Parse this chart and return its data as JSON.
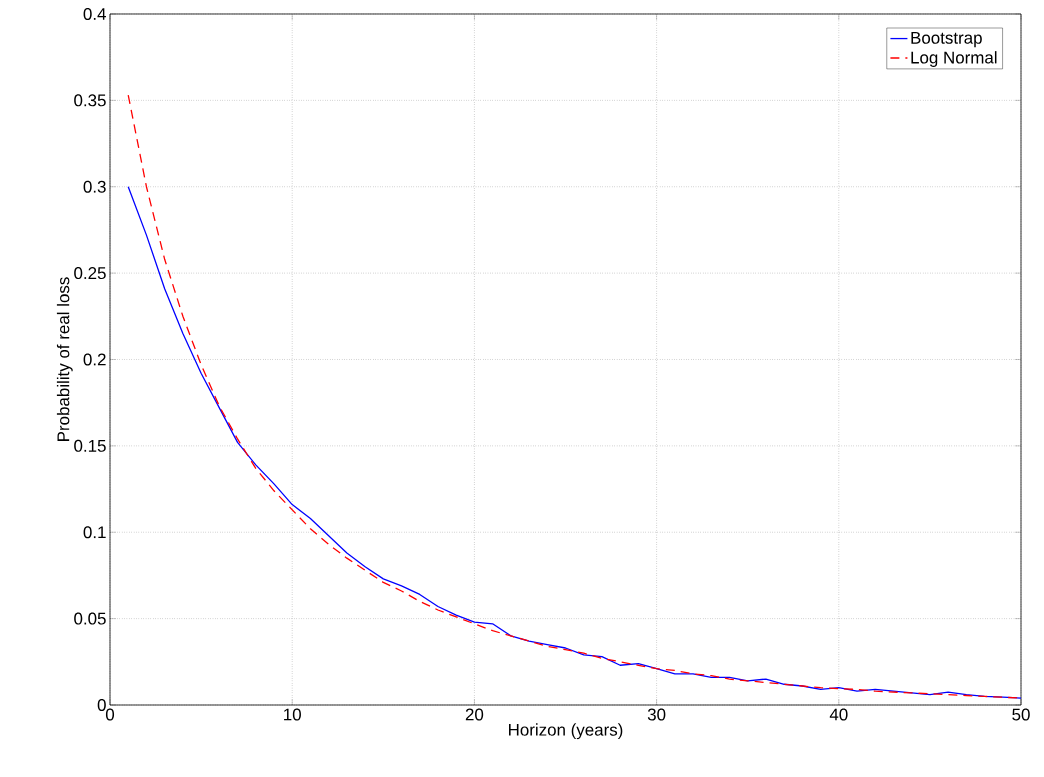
{
  "chart_data": {
    "type": "line",
    "xlabel": "Horizon (years)",
    "ylabel": "Probability of real loss",
    "x": [
      1,
      2,
      3,
      4,
      5,
      6,
      7,
      8,
      9,
      10,
      11,
      12,
      13,
      14,
      15,
      16,
      17,
      18,
      19,
      20,
      21,
      22,
      23,
      24,
      25,
      26,
      27,
      28,
      29,
      30,
      31,
      32,
      33,
      34,
      35,
      36,
      37,
      38,
      39,
      40,
      41,
      42,
      43,
      44,
      45,
      46,
      47,
      48,
      49,
      50
    ],
    "series": [
      {
        "name": "Bootstrap",
        "color": "#0000ff",
        "line_style": "solid",
        "values": [
          0.3,
          0.272,
          0.241,
          0.215,
          0.192,
          0.172,
          0.152,
          0.139,
          0.128,
          0.116,
          0.108,
          0.098,
          0.088,
          0.08,
          0.073,
          0.069,
          0.064,
          0.057,
          0.052,
          0.048,
          0.047,
          0.04,
          0.037,
          0.035,
          0.033,
          0.029,
          0.028,
          0.023,
          0.024,
          0.021,
          0.018,
          0.018,
          0.016,
          0.016,
          0.014,
          0.015,
          0.012,
          0.011,
          0.009,
          0.01,
          0.008,
          0.009,
          0.008,
          0.007,
          0.006,
          0.0075,
          0.006,
          0.005,
          0.0045,
          0.004
        ]
      },
      {
        "name": "Log Normal",
        "color": "#ff0000",
        "line_style": "dashed",
        "values": [
          0.353,
          0.3,
          0.258,
          0.225,
          0.197,
          0.173,
          0.154,
          0.137,
          0.124,
          0.113,
          0.102,
          0.093,
          0.085,
          0.078,
          0.071,
          0.066,
          0.06,
          0.055,
          0.051,
          0.047,
          0.043,
          0.04,
          0.037,
          0.034,
          0.032,
          0.03,
          0.027,
          0.025,
          0.023,
          0.021,
          0.02,
          0.018,
          0.017,
          0.015,
          0.014,
          0.013,
          0.012,
          0.011,
          0.01,
          0.0095,
          0.009,
          0.008,
          0.0075,
          0.007,
          0.0065,
          0.006,
          0.0055,
          0.005,
          0.0045,
          0.004
        ]
      }
    ],
    "xlim": [
      0,
      50
    ],
    "ylim": [
      0,
      0.4
    ],
    "xticks": [
      0,
      10,
      20,
      30,
      40,
      50
    ],
    "yticks": [
      0,
      0.05,
      0.1,
      0.15,
      0.2,
      0.25,
      0.3,
      0.35,
      0.4
    ],
    "grid": true,
    "legend": "top right",
    "marker": "none"
  }
}
